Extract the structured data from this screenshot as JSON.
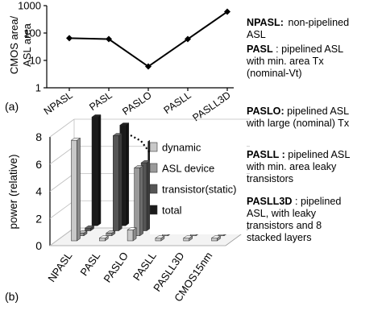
{
  "chart_data": [
    {
      "panel": "(a)",
      "type": "line",
      "categories": [
        "NPASL",
        "PASL",
        "PASLO",
        "PASLL",
        "PASLL3D"
      ],
      "values": [
        65,
        60,
        6,
        60,
        600
      ],
      "ylabel_line1": "CMOS area/",
      "ylabel_line2": "ASL area",
      "yscale": "log",
      "ylim": [
        1,
        1000
      ],
      "yticks": [
        "1",
        "10",
        "100",
        "1000"
      ],
      "grid": false,
      "color": "#000000"
    },
    {
      "panel": "(b)",
      "type": "bar",
      "style": "3d-grouped",
      "categories": [
        "NPASL",
        "PASL",
        "PASLO",
        "PASLL",
        "PASLL3D",
        "CMOS15nm"
      ],
      "ylabel": "power (relative)",
      "ylim": [
        0,
        8
      ],
      "yticks": [
        "0",
        "2",
        "4",
        "6",
        "8"
      ],
      "grid": true,
      "legend_position": "top-right",
      "series": [
        {
          "name": "dynamic",
          "color": "#c8c8c8",
          "values": [
            7.4,
            0.2,
            0.8,
            0.2,
            0.2,
            0.2
          ]
        },
        {
          "name": "ASL device",
          "color": "#9a9a9a",
          "values": [
            0.2,
            0.2,
            5.0,
            0.2,
            0.2,
            0.2
          ]
        },
        {
          "name": "transistor(static)",
          "color": "#555555",
          "values": [
            0.2,
            7.0,
            5.0,
            0.6,
            0.5,
            0.2
          ]
        },
        {
          "name": "total",
          "color": "#1a1a1a",
          "values": [
            8.0,
            7.4,
            6.2,
            2.4,
            1.4,
            0.3
          ]
        }
      ],
      "annotation": "dotted trend arrow and double-headed arrow"
    }
  ],
  "descriptions": [
    {
      "term": "NPASL:",
      "lines": [
        "non-pipelined",
        "ASL"
      ]
    },
    {
      "term": "PASL",
      "lines": [
        ": pipelined ASL",
        "with min. area Tx",
        "(nominal-Vt)"
      ]
    },
    {
      "term": "PASLO:",
      "lines": [
        "pipelined ASL",
        "with large (nominal) Tx"
      ]
    },
    {
      "term": "PASLL :",
      "lines": [
        "pipelined ASL",
        "with min. area leaky",
        "transistors"
      ]
    },
    {
      "term": "PASLL3D",
      "lines": [
        ": pipelined",
        "ASL,  with leaky",
        "transistors and  8",
        "stacked layers"
      ]
    }
  ]
}
